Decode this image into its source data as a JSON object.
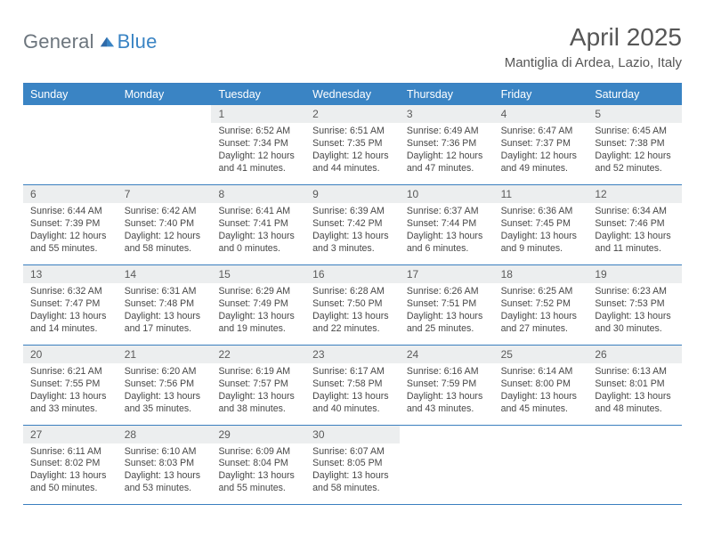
{
  "brand": {
    "general": "General",
    "blue": "Blue"
  },
  "title": "April 2025",
  "location": "Mantiglia di Ardea, Lazio, Italy",
  "colors": {
    "header_bg": "#3a84c4",
    "border": "#3a7fbf",
    "daynum_bg": "#eceeef",
    "text": "#474747",
    "title_text": "#565656",
    "logo_gray": "#6c757d",
    "logo_blue": "#3a84c4"
  },
  "dayLabels": [
    "Sunday",
    "Monday",
    "Tuesday",
    "Wednesday",
    "Thursday",
    "Friday",
    "Saturday"
  ],
  "weeks": [
    [
      null,
      null,
      {
        "n": "1",
        "sr": "Sunrise: 6:52 AM",
        "ss": "Sunset: 7:34 PM",
        "dl": "Daylight: 12 hours and 41 minutes."
      },
      {
        "n": "2",
        "sr": "Sunrise: 6:51 AM",
        "ss": "Sunset: 7:35 PM",
        "dl": "Daylight: 12 hours and 44 minutes."
      },
      {
        "n": "3",
        "sr": "Sunrise: 6:49 AM",
        "ss": "Sunset: 7:36 PM",
        "dl": "Daylight: 12 hours and 47 minutes."
      },
      {
        "n": "4",
        "sr": "Sunrise: 6:47 AM",
        "ss": "Sunset: 7:37 PM",
        "dl": "Daylight: 12 hours and 49 minutes."
      },
      {
        "n": "5",
        "sr": "Sunrise: 6:45 AM",
        "ss": "Sunset: 7:38 PM",
        "dl": "Daylight: 12 hours and 52 minutes."
      }
    ],
    [
      {
        "n": "6",
        "sr": "Sunrise: 6:44 AM",
        "ss": "Sunset: 7:39 PM",
        "dl": "Daylight: 12 hours and 55 minutes."
      },
      {
        "n": "7",
        "sr": "Sunrise: 6:42 AM",
        "ss": "Sunset: 7:40 PM",
        "dl": "Daylight: 12 hours and 58 minutes."
      },
      {
        "n": "8",
        "sr": "Sunrise: 6:41 AM",
        "ss": "Sunset: 7:41 PM",
        "dl": "Daylight: 13 hours and 0 minutes."
      },
      {
        "n": "9",
        "sr": "Sunrise: 6:39 AM",
        "ss": "Sunset: 7:42 PM",
        "dl": "Daylight: 13 hours and 3 minutes."
      },
      {
        "n": "10",
        "sr": "Sunrise: 6:37 AM",
        "ss": "Sunset: 7:44 PM",
        "dl": "Daylight: 13 hours and 6 minutes."
      },
      {
        "n": "11",
        "sr": "Sunrise: 6:36 AM",
        "ss": "Sunset: 7:45 PM",
        "dl": "Daylight: 13 hours and 9 minutes."
      },
      {
        "n": "12",
        "sr": "Sunrise: 6:34 AM",
        "ss": "Sunset: 7:46 PM",
        "dl": "Daylight: 13 hours and 11 minutes."
      }
    ],
    [
      {
        "n": "13",
        "sr": "Sunrise: 6:32 AM",
        "ss": "Sunset: 7:47 PM",
        "dl": "Daylight: 13 hours and 14 minutes."
      },
      {
        "n": "14",
        "sr": "Sunrise: 6:31 AM",
        "ss": "Sunset: 7:48 PM",
        "dl": "Daylight: 13 hours and 17 minutes."
      },
      {
        "n": "15",
        "sr": "Sunrise: 6:29 AM",
        "ss": "Sunset: 7:49 PM",
        "dl": "Daylight: 13 hours and 19 minutes."
      },
      {
        "n": "16",
        "sr": "Sunrise: 6:28 AM",
        "ss": "Sunset: 7:50 PM",
        "dl": "Daylight: 13 hours and 22 minutes."
      },
      {
        "n": "17",
        "sr": "Sunrise: 6:26 AM",
        "ss": "Sunset: 7:51 PM",
        "dl": "Daylight: 13 hours and 25 minutes."
      },
      {
        "n": "18",
        "sr": "Sunrise: 6:25 AM",
        "ss": "Sunset: 7:52 PM",
        "dl": "Daylight: 13 hours and 27 minutes."
      },
      {
        "n": "19",
        "sr": "Sunrise: 6:23 AM",
        "ss": "Sunset: 7:53 PM",
        "dl": "Daylight: 13 hours and 30 minutes."
      }
    ],
    [
      {
        "n": "20",
        "sr": "Sunrise: 6:21 AM",
        "ss": "Sunset: 7:55 PM",
        "dl": "Daylight: 13 hours and 33 minutes."
      },
      {
        "n": "21",
        "sr": "Sunrise: 6:20 AM",
        "ss": "Sunset: 7:56 PM",
        "dl": "Daylight: 13 hours and 35 minutes."
      },
      {
        "n": "22",
        "sr": "Sunrise: 6:19 AM",
        "ss": "Sunset: 7:57 PM",
        "dl": "Daylight: 13 hours and 38 minutes."
      },
      {
        "n": "23",
        "sr": "Sunrise: 6:17 AM",
        "ss": "Sunset: 7:58 PM",
        "dl": "Daylight: 13 hours and 40 minutes."
      },
      {
        "n": "24",
        "sr": "Sunrise: 6:16 AM",
        "ss": "Sunset: 7:59 PM",
        "dl": "Daylight: 13 hours and 43 minutes."
      },
      {
        "n": "25",
        "sr": "Sunrise: 6:14 AM",
        "ss": "Sunset: 8:00 PM",
        "dl": "Daylight: 13 hours and 45 minutes."
      },
      {
        "n": "26",
        "sr": "Sunrise: 6:13 AM",
        "ss": "Sunset: 8:01 PM",
        "dl": "Daylight: 13 hours and 48 minutes."
      }
    ],
    [
      {
        "n": "27",
        "sr": "Sunrise: 6:11 AM",
        "ss": "Sunset: 8:02 PM",
        "dl": "Daylight: 13 hours and 50 minutes."
      },
      {
        "n": "28",
        "sr": "Sunrise: 6:10 AM",
        "ss": "Sunset: 8:03 PM",
        "dl": "Daylight: 13 hours and 53 minutes."
      },
      {
        "n": "29",
        "sr": "Sunrise: 6:09 AM",
        "ss": "Sunset: 8:04 PM",
        "dl": "Daylight: 13 hours and 55 minutes."
      },
      {
        "n": "30",
        "sr": "Sunrise: 6:07 AM",
        "ss": "Sunset: 8:05 PM",
        "dl": "Daylight: 13 hours and 58 minutes."
      },
      null,
      null,
      null
    ]
  ]
}
